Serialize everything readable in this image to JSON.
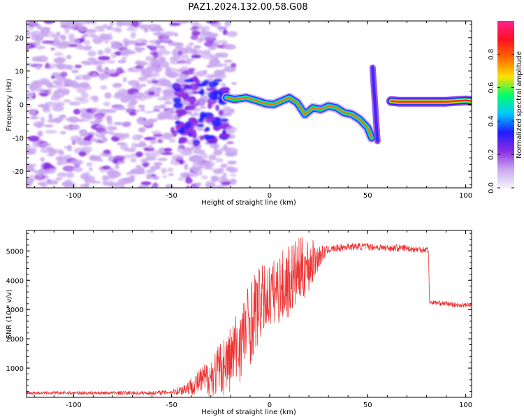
{
  "title": "PAZ1.2024.132.00.58.G08",
  "chart_data": [
    {
      "type": "heatmap",
      "xlabel": "Height of straight line (km)",
      "ylabel": "Frequency (Hz)",
      "xlim": [
        -124,
        103
      ],
      "ylim": [
        -25,
        25
      ],
      "xticks": [
        -100,
        -50,
        0,
        50,
        100
      ],
      "yticks": [
        -20,
        -10,
        0,
        10,
        20
      ],
      "colorbar": {
        "label": "Normalized spectral amplitude",
        "ticks": [
          "0.0",
          "0.2",
          "0.4",
          "0.6",
          "0.8"
        ],
        "tick_values": [
          0.0,
          0.2,
          0.4,
          0.6,
          0.8
        ],
        "range": [
          0,
          1
        ],
        "colormap": [
          "#f4f0fb",
          "#c9a8ef",
          "#8a2be2",
          "#1e1eff",
          "#00c8ff",
          "#00ff66",
          "#ffe000",
          "#ff6a00",
          "#ff1020",
          "#ff1f8f"
        ]
      },
      "ridge": {
        "x": [
          -22,
          -18,
          -12,
          -6,
          -2,
          2,
          6,
          10,
          14,
          18,
          22,
          26,
          30,
          34,
          38,
          42,
          46,
          50,
          52
        ],
        "y": [
          2,
          1.5,
          2,
          1,
          0.2,
          0,
          1,
          2,
          0.5,
          -3,
          -1,
          -1.5,
          -0.5,
          -1,
          -2.5,
          -3,
          -4.5,
          -7,
          -10
        ]
      },
      "ridge2": {
        "x": [
          62,
          66,
          70,
          75,
          80,
          85,
          90,
          95,
          100,
          103
        ],
        "y": [
          1,
          0.8,
          0.8,
          0.8,
          0.8,
          0.8,
          0.8,
          1,
          1.2,
          1
        ]
      },
      "jump": {
        "x": 53.5,
        "y_from": 11,
        "y_to": -11
      },
      "noise_extent": [
        -124,
        -22
      ]
    },
    {
      "type": "line",
      "xlabel": "Height of straight line (km)",
      "ylabel": "SNR (10 * v/v)",
      "xlim": [
        -124,
        103
      ],
      "ylim": [
        0,
        5700
      ],
      "xticks": [
        -100,
        -50,
        0,
        50,
        100
      ],
      "yticks": [
        1000,
        2000,
        3000,
        4000,
        5000
      ],
      "color": "#ee3333",
      "profile": {
        "x": [
          -124,
          -60,
          -50,
          -45,
          -40,
          -35,
          -30,
          -25,
          -20,
          -15,
          -10,
          -5,
          0,
          5,
          10,
          15,
          20,
          25,
          30,
          40,
          50,
          60,
          70,
          75,
          81,
          81.5,
          90,
          95,
          103
        ],
        "y": [
          150,
          150,
          180,
          250,
          400,
          550,
          700,
          1000,
          1300,
          1900,
          2600,
          3200,
          3500,
          3700,
          4000,
          4300,
          4500,
          4800,
          5050,
          5150,
          5150,
          5100,
          5100,
          5050,
          5050,
          3250,
          3200,
          3150,
          3150
        ]
      },
      "noise_amplitude": {
        "x": [
          -124,
          -50,
          -40,
          -30,
          -20,
          -10,
          0,
          10,
          20,
          25,
          30,
          81,
          82,
          103
        ],
        "y": [
          50,
          70,
          300,
          700,
          1200,
          1500,
          1100,
          1300,
          1000,
          400,
          120,
          120,
          80,
          80
        ]
      }
    }
  ]
}
